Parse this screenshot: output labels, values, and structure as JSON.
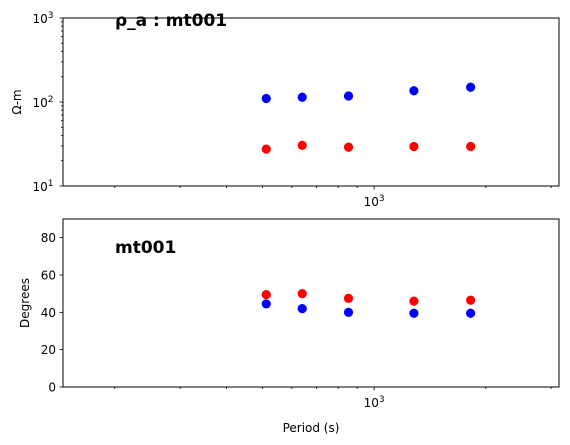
{
  "chart_data": [
    {
      "type": "scatter",
      "title": "ρ_a : mt001",
      "xlabel": "",
      "ylabel": "Ω-m",
      "x_scale": "log",
      "y_scale": "log",
      "xlim": [
        145,
        3150
      ],
      "ylim": [
        10,
        1000
      ],
      "x_ticks": [
        {
          "value": 1000,
          "base": "10",
          "exp": "3"
        }
      ],
      "y_ticks": [
        {
          "value": 10,
          "base": "10",
          "exp": "1"
        },
        {
          "value": 100,
          "base": "10",
          "exp": "2"
        },
        {
          "value": 1000,
          "base": "10",
          "exp": "3"
        }
      ],
      "grid": false,
      "series": [
        {
          "color": "#0000ff",
          "marker": "circle",
          "x": [
            512,
            640,
            853,
            1280,
            1820
          ],
          "y": [
            110,
            114,
            118,
            136,
            150
          ]
        },
        {
          "color": "#ff0000",
          "marker": "circle",
          "x": [
            512,
            640,
            853,
            1280,
            1820
          ],
          "y": [
            27.5,
            30.5,
            29.0,
            29.5,
            29.5
          ]
        }
      ]
    },
    {
      "type": "scatter",
      "title": "mt001",
      "xlabel": "Period (s)",
      "ylabel": "Degrees",
      "x_scale": "log",
      "y_scale": "linear",
      "xlim": [
        145,
        3150
      ],
      "ylim": [
        0,
        90
      ],
      "x_ticks": [
        {
          "value": 1000,
          "base": "10",
          "exp": "3"
        }
      ],
      "y_ticks": [
        0,
        20,
        40,
        60,
        80
      ],
      "grid": false,
      "series": [
        {
          "color": "#0000ff",
          "marker": "circle",
          "x": [
            512,
            640,
            853,
            1280,
            1820
          ],
          "y": [
            44.5,
            42.0,
            40.0,
            39.5,
            39.5
          ]
        },
        {
          "color": "#ff0000",
          "marker": "circle",
          "x": [
            512,
            640,
            853,
            1280,
            1820
          ],
          "y": [
            49.5,
            50.0,
            47.5,
            46.0,
            46.5
          ]
        }
      ]
    }
  ]
}
